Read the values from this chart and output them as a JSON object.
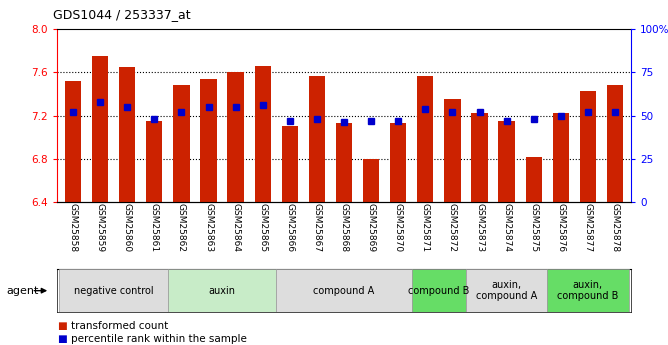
{
  "title": "GDS1044 / 253337_at",
  "samples": [
    "GSM25858",
    "GSM25859",
    "GSM25860",
    "GSM25861",
    "GSM25862",
    "GSM25863",
    "GSM25864",
    "GSM25865",
    "GSM25866",
    "GSM25867",
    "GSM25868",
    "GSM25869",
    "GSM25870",
    "GSM25871",
    "GSM25872",
    "GSM25873",
    "GSM25874",
    "GSM25875",
    "GSM25876",
    "GSM25877",
    "GSM25878"
  ],
  "bar_values": [
    7.52,
    7.75,
    7.65,
    7.15,
    7.48,
    7.54,
    7.6,
    7.66,
    7.1,
    7.57,
    7.13,
    6.8,
    7.13,
    7.57,
    7.35,
    7.22,
    7.15,
    6.82,
    7.22,
    7.43,
    7.48
  ],
  "percentile_values": [
    52,
    58,
    55,
    48,
    52,
    55,
    55,
    56,
    47,
    48,
    46,
    47,
    47,
    54,
    52,
    52,
    47,
    48,
    50,
    52,
    52
  ],
  "bar_color": "#cc2200",
  "percentile_color": "#0000cc",
  "ylim_left": [
    6.4,
    8.0
  ],
  "ylim_right": [
    0,
    100
  ],
  "yticks_left": [
    6.4,
    6.8,
    7.2,
    7.6,
    8.0
  ],
  "yticks_right": [
    0,
    25,
    50,
    75,
    100
  ],
  "yticklabels_right": [
    "0",
    "25",
    "50",
    "75",
    "100%"
  ],
  "dotted_lines": [
    6.8,
    7.2,
    7.6
  ],
  "agent_groups": [
    {
      "label": "negative control",
      "start": 0,
      "end": 3,
      "color": "#dddddd"
    },
    {
      "label": "auxin",
      "start": 4,
      "end": 7,
      "color": "#c8ecc8"
    },
    {
      "label": "compound A",
      "start": 8,
      "end": 12,
      "color": "#dddddd"
    },
    {
      "label": "compound B",
      "start": 13,
      "end": 14,
      "color": "#66dd66"
    },
    {
      "label": "auxin,\ncompound A",
      "start": 15,
      "end": 17,
      "color": "#dddddd"
    },
    {
      "label": "auxin,\ncompound B",
      "start": 18,
      "end": 20,
      "color": "#66dd66"
    }
  ],
  "legend_red": "transformed count",
  "legend_blue": "percentile rank within the sample",
  "agent_label": "agent"
}
